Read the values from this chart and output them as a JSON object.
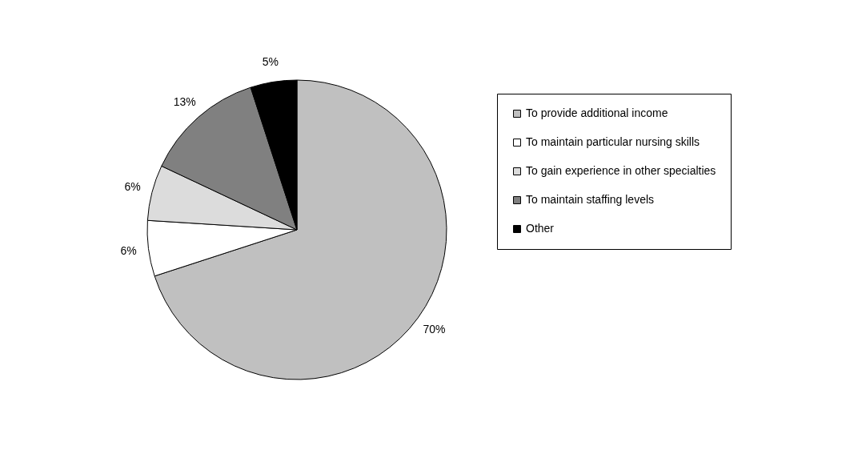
{
  "chart_data": {
    "type": "pie",
    "categories": [
      "To provide additional income",
      "To maintain particular nursing skills",
      "To gain experience in other specialties",
      "To maintain staffing levels",
      "Other"
    ],
    "values": [
      70,
      6,
      6,
      13,
      5
    ],
    "colors": [
      "#c0c0c0",
      "#ffffff",
      "#dcdcdc",
      "#808080",
      "#000000"
    ],
    "value_labels": [
      "70%",
      "6%",
      "6%",
      "13%",
      "5%"
    ],
    "legend": "right"
  }
}
